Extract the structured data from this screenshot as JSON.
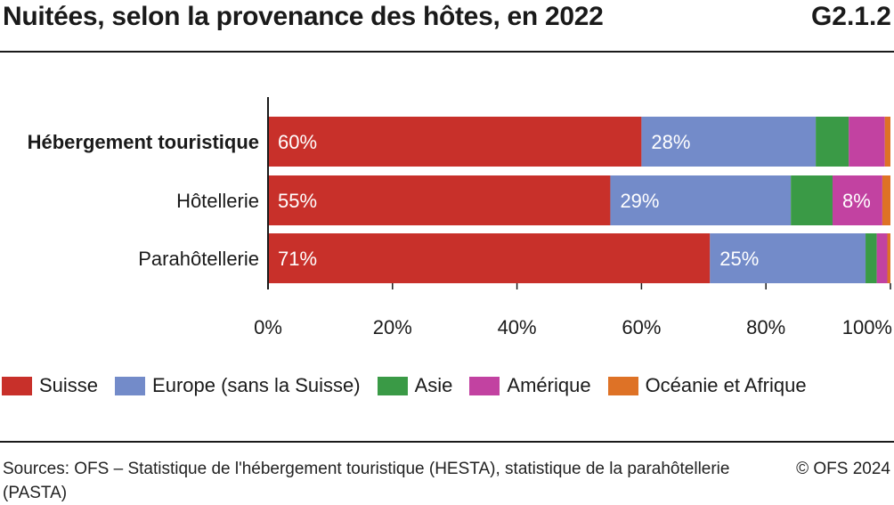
{
  "header": {
    "title": "Nuitées, selon la provenance des hôtes, en 2022",
    "code": "G2.1.2"
  },
  "footer": {
    "source": "Sources: OFS – Statistique de l'hébergement touristique (HESTA), statistique de la parahôtellerie (PASTA)",
    "copyright": "© OFS 2024"
  },
  "chart_data": {
    "type": "bar",
    "orientation": "horizontal",
    "stacked": true,
    "title": "Nuitées, selon la provenance des hôtes, en 2022",
    "categories": [
      "Hébergement touristique",
      "Hôtellerie",
      "Parahôtellerie"
    ],
    "bold_categories": [
      "Hébergement touristique"
    ],
    "series": [
      {
        "name": "Suisse",
        "color": "#c8302a",
        "values": [
          60,
          55,
          71
        ],
        "labels": [
          "60%",
          "55%",
          "71%"
        ]
      },
      {
        "name": "Europe (sans la Suisse)",
        "color": "#738bc9",
        "values": [
          28,
          29,
          25
        ],
        "labels": [
          "28%",
          "29%",
          "25%"
        ]
      },
      {
        "name": "Asie",
        "color": "#3a9a46",
        "values": [
          5.3,
          6.7,
          1.8
        ],
        "labels": [
          "",
          "",
          ""
        ]
      },
      {
        "name": "Amérique",
        "color": "#c242a1",
        "values": [
          5.8,
          8,
          1.7
        ],
        "labels": [
          "",
          "8%",
          ""
        ]
      },
      {
        "name": "Océanie et Afrique",
        "color": "#de7226",
        "values": [
          0.9,
          1.3,
          0.5
        ],
        "labels": [
          "",
          "",
          ""
        ]
      }
    ],
    "xlim": [
      0,
      100
    ],
    "xticks": [
      0,
      20,
      40,
      60,
      80,
      100
    ],
    "xtick_labels": [
      "0%",
      "20%",
      "40%",
      "60%",
      "80%",
      "100%"
    ],
    "xlabel": "",
    "ylabel": "",
    "legend_position": "bottom",
    "grid": false
  }
}
